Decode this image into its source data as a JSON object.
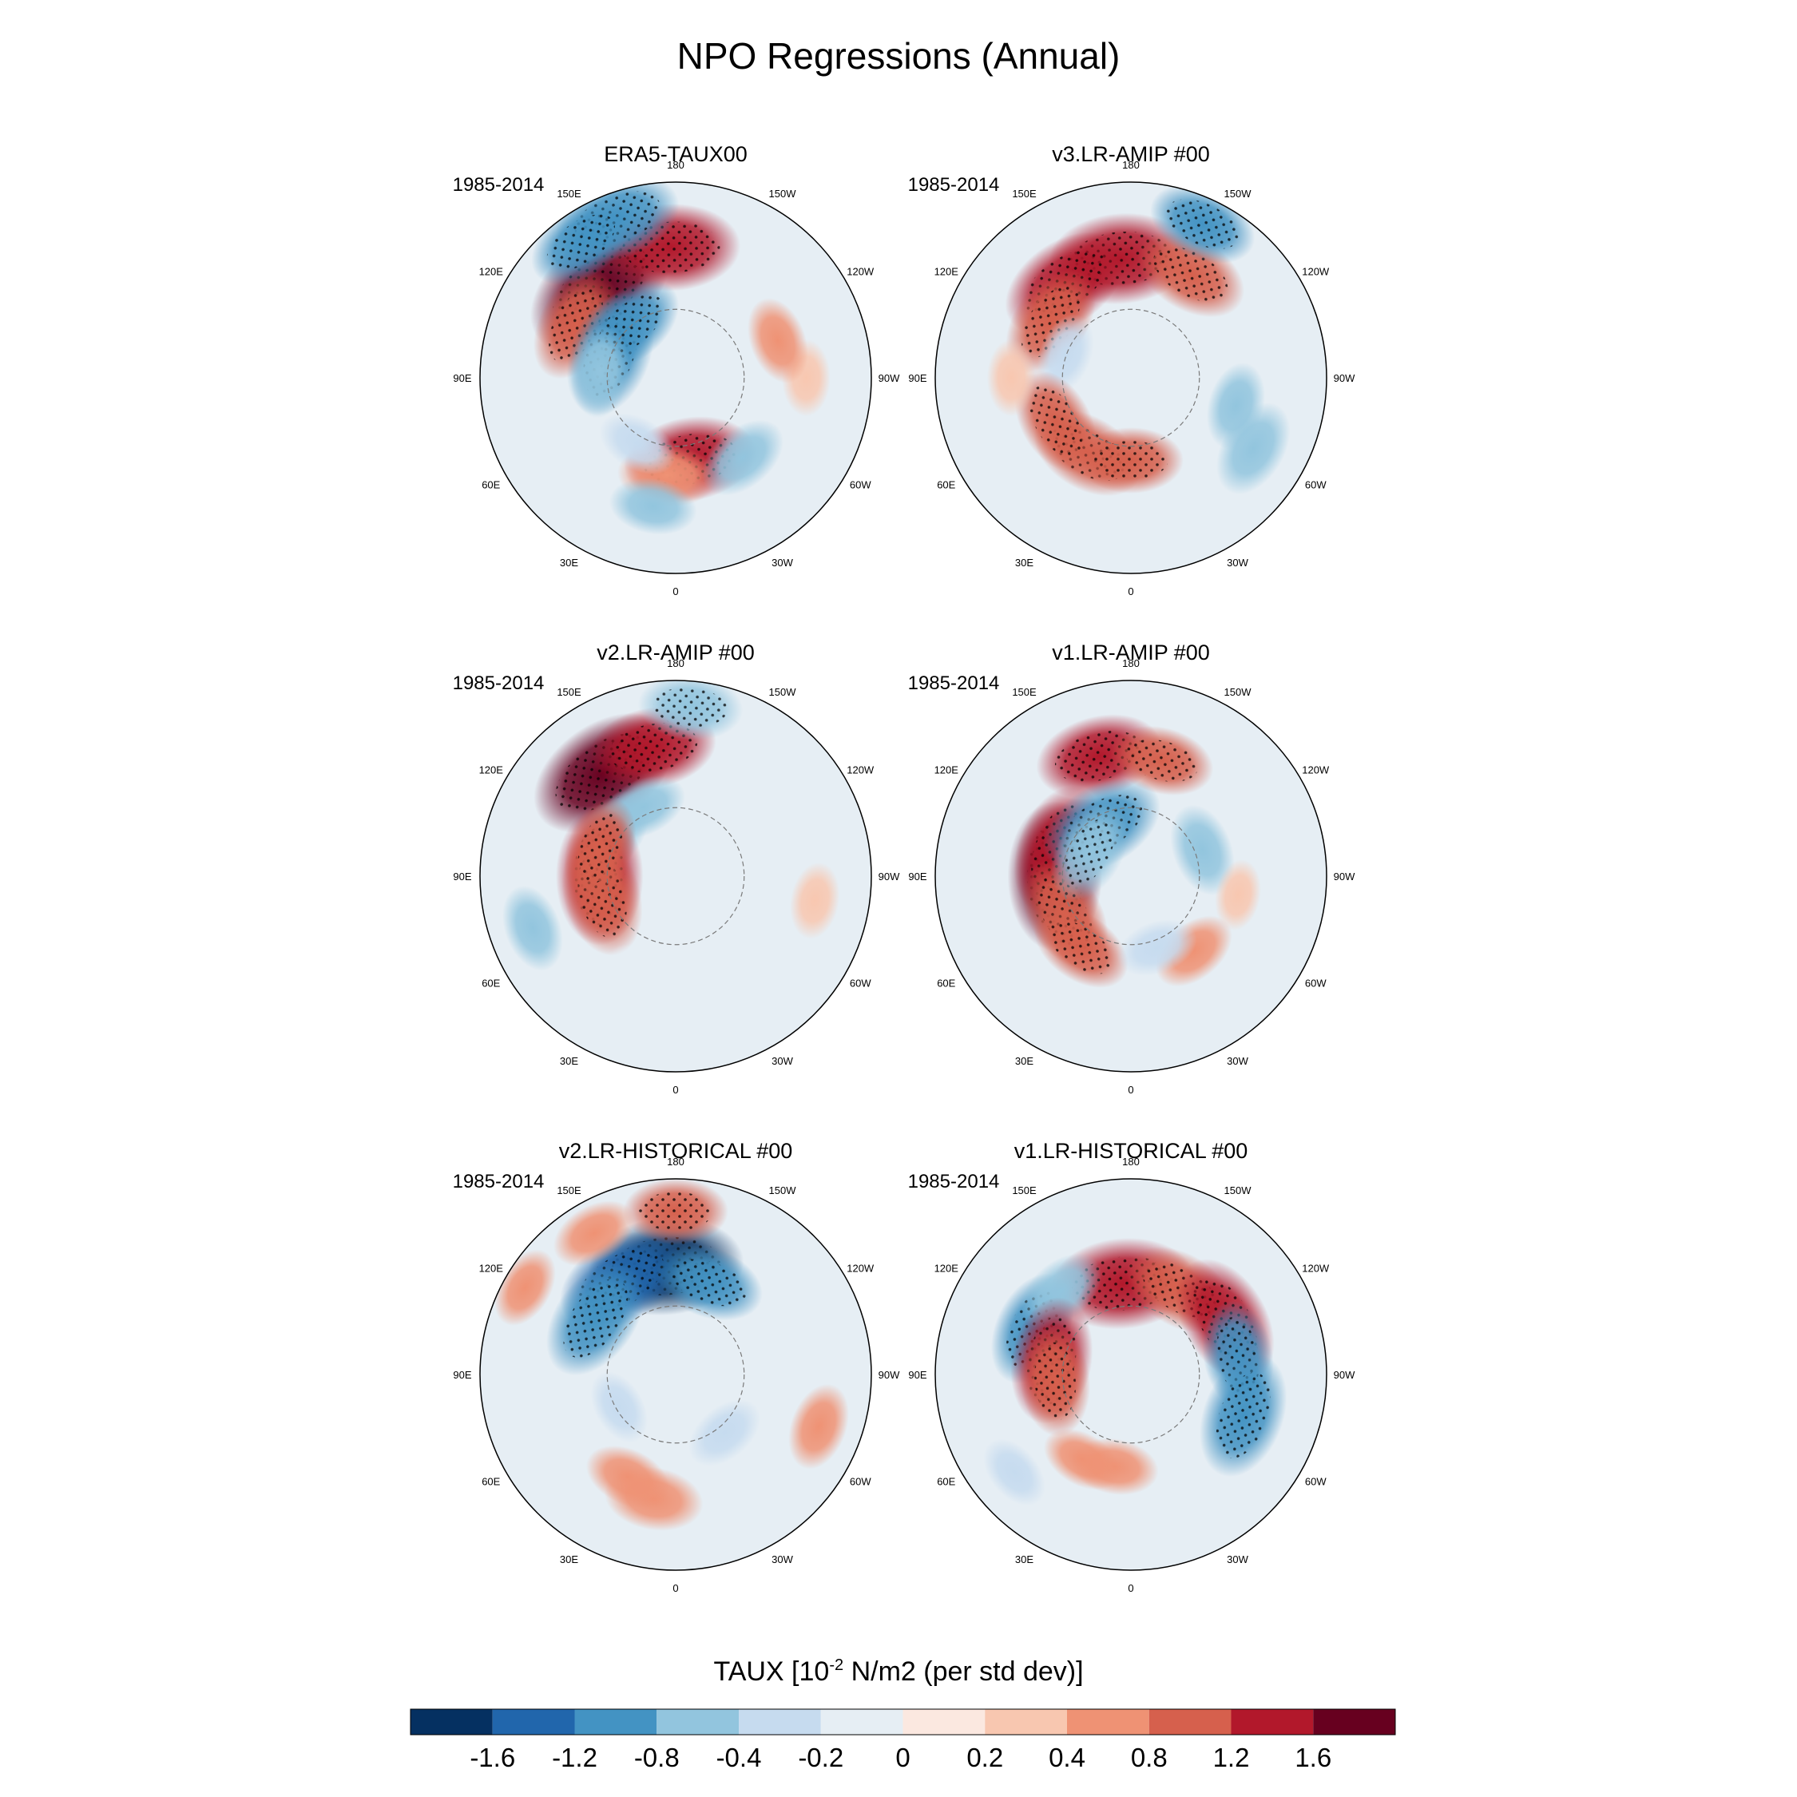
{
  "chart_data": {
    "type": "heatmap",
    "title": "NPO Regressions (Annual)",
    "projection": "north polar stereographic",
    "longitude_labels": [
      "180",
      "150E",
      "120E",
      "90E",
      "60E",
      "30E",
      "0",
      "30W",
      "60W",
      "90W",
      "120W",
      "150W"
    ],
    "colorbar": {
      "title": "TAUX [10",
      "exponent": "-2",
      "title_suffix": " N/m2 (per std dev)]",
      "levels": [
        -1.6,
        -1.2,
        -0.8,
        -0.4,
        -0.2,
        0,
        0.2,
        0.4,
        0.8,
        1.2,
        1.6
      ],
      "tick_labels": [
        "-1.6",
        "-1.2",
        "-0.8",
        "-0.4",
        "-0.2",
        "0",
        "0.2",
        "0.4",
        "0.8",
        "1.2",
        "1.6"
      ],
      "colors": [
        "#053061",
        "#2166ac",
        "#4393c3",
        "#92c5de",
        "#c6dbef",
        "#e6eef4",
        "#fbe8e0",
        "#f8c7b0",
        "#ef9274",
        "#d6604d",
        "#b2182b",
        "#67001f"
      ]
    },
    "panels": [
      {
        "title": "ERA5-TAUX00",
        "period": "1985-2014",
        "features": [
          {
            "lon": 140,
            "lat": 36,
            "value": 1.8
          },
          {
            "lon": 178,
            "lat": 30,
            "value": 1.4
          },
          {
            "lon": 118,
            "lat": 38,
            "value": 1.0
          },
          {
            "lon": 160,
            "lat": 12,
            "value": -1.2
          },
          {
            "lon": 145,
            "lat": 14,
            "value": -0.9
          },
          {
            "lon": 110,
            "lat": 58,
            "value": -1.2
          },
          {
            "lon": 140,
            "lat": 58,
            "value": -0.9
          },
          {
            "lon": 95,
            "lat": 55,
            "value": -0.6
          },
          {
            "lon": -10,
            "lat": 52,
            "value": 1.3
          },
          {
            "lon": 5,
            "lat": 45,
            "value": 0.7
          },
          {
            "lon": -40,
            "lat": 42,
            "value": -0.6
          },
          {
            "lon": 30,
            "lat": 55,
            "value": -0.4
          },
          {
            "lon": 10,
            "lat": 30,
            "value": -0.5
          },
          {
            "lon": -90,
            "lat": 30,
            "value": 0.3
          },
          {
            "lon": -110,
            "lat": 40,
            "value": 0.5
          }
        ]
      },
      {
        "title": "v3.LR-AMIP  #00",
        "period": "1985-2014",
        "features": [
          {
            "lon": 175,
            "lat": 35,
            "value": 1.5
          },
          {
            "lon": 145,
            "lat": 37,
            "value": 1.3
          },
          {
            "lon": -150,
            "lat": 35,
            "value": 1.0
          },
          {
            "lon": -155,
            "lat": 12,
            "value": -0.9
          },
          {
            "lon": 125,
            "lat": 45,
            "value": 1.0
          },
          {
            "lon": 110,
            "lat": 58,
            "value": -0.4
          },
          {
            "lon": 30,
            "lat": 50,
            "value": 1.0
          },
          {
            "lon": 60,
            "lat": 50,
            "value": 0.9
          },
          {
            "lon": 0,
            "lat": 52,
            "value": 0.8
          },
          {
            "lon": -60,
            "lat": 25,
            "value": -0.7
          },
          {
            "lon": -75,
            "lat": 40,
            "value": -0.5
          },
          {
            "lon": 90,
            "lat": 35,
            "value": 0.3
          }
        ]
      },
      {
        "title": "v2.LR-AMIP  #00",
        "period": "1985-2014",
        "features": [
          {
            "lon": 145,
            "lat": 32,
            "value": 1.7
          },
          {
            "lon": 170,
            "lat": 30,
            "value": 1.2
          },
          {
            "lon": -175,
            "lat": 12,
            "value": -0.8
          },
          {
            "lon": 125,
            "lat": 55,
            "value": -0.6
          },
          {
            "lon": 155,
            "lat": 55,
            "value": -0.5
          },
          {
            "lon": 90,
            "lat": 55,
            "value": 1.4
          },
          {
            "lon": 75,
            "lat": 55,
            "value": 1.1
          },
          {
            "lon": 110,
            "lat": 53,
            "value": 0.8
          },
          {
            "lon": 70,
            "lat": 20,
            "value": -0.5
          },
          {
            "lon": -80,
            "lat": 25,
            "value": 0.3
          },
          {
            "lon": 20,
            "lat": 45,
            "value": -0.2
          },
          {
            "lon": -30,
            "lat": 45,
            "value": -0.2
          }
        ]
      },
      {
        "title": "v1.LR-AMIP  #00",
        "period": "1985-2014",
        "features": [
          {
            "lon": 165,
            "lat": 33,
            "value": 1.2
          },
          {
            "lon": -165,
            "lat": 35,
            "value": 0.8
          },
          {
            "lon": 90,
            "lat": 55,
            "value": 1.6
          },
          {
            "lon": 110,
            "lat": 55,
            "value": 1.3
          },
          {
            "lon": 60,
            "lat": 55,
            "value": 1.0
          },
          {
            "lon": 35,
            "lat": 50,
            "value": 0.8
          },
          {
            "lon": 150,
            "lat": 63,
            "value": -1.2
          },
          {
            "lon": 120,
            "lat": 68,
            "value": -0.8
          },
          {
            "lon": -110,
            "lat": 55,
            "value": -0.6
          },
          {
            "lon": -40,
            "lat": 45,
            "value": 0.5
          },
          {
            "lon": -20,
            "lat": 55,
            "value": -0.4
          },
          {
            "lon": -80,
            "lat": 40,
            "value": 0.2
          }
        ]
      },
      {
        "title": "v2.LR-HISTORICAL  #00",
        "period": "1985-2014",
        "features": [
          {
            "lon": 175,
            "lat": 40,
            "value": -1.7
          },
          {
            "lon": 150,
            "lat": 40,
            "value": -1.3
          },
          {
            "lon": 125,
            "lat": 45,
            "value": -1.2
          },
          {
            "lon": -160,
            "lat": 45,
            "value": -0.9
          },
          {
            "lon": 180,
            "lat": 15,
            "value": 0.8
          },
          {
            "lon": 150,
            "lat": 15,
            "value": 0.5
          },
          {
            "lon": 10,
            "lat": 32,
            "value": 0.7
          },
          {
            "lon": 25,
            "lat": 38,
            "value": 0.5
          },
          {
            "lon": -70,
            "lat": 20,
            "value": 0.5
          },
          {
            "lon": 120,
            "lat": 10,
            "value": 0.4
          },
          {
            "lon": -40,
            "lat": 55,
            "value": -0.4
          },
          {
            "lon": 60,
            "lat": 60,
            "value": -0.3
          }
        ]
      },
      {
        "title": "v1.LR-HISTORICAL  #00",
        "period": "1985-2014",
        "features": [
          {
            "lon": 175,
            "lat": 48,
            "value": 1.5
          },
          {
            "lon": -150,
            "lat": 45,
            "value": 1.0
          },
          {
            "lon": -120,
            "lat": 40,
            "value": 1.3
          },
          {
            "lon": -100,
            "lat": 40,
            "value": -0.9
          },
          {
            "lon": -70,
            "lat": 35,
            "value": -1.2
          },
          {
            "lon": 115,
            "lat": 40,
            "value": -1.0
          },
          {
            "lon": 140,
            "lat": 40,
            "value": -0.6
          },
          {
            "lon": 100,
            "lat": 53,
            "value": 1.2
          },
          {
            "lon": 85,
            "lat": 55,
            "value": 0.9
          },
          {
            "lon": 10,
            "lat": 47,
            "value": 0.5
          },
          {
            "lon": 30,
            "lat": 45,
            "value": 0.4
          },
          {
            "lon": 50,
            "lat": 20,
            "value": -0.3
          }
        ]
      }
    ]
  }
}
